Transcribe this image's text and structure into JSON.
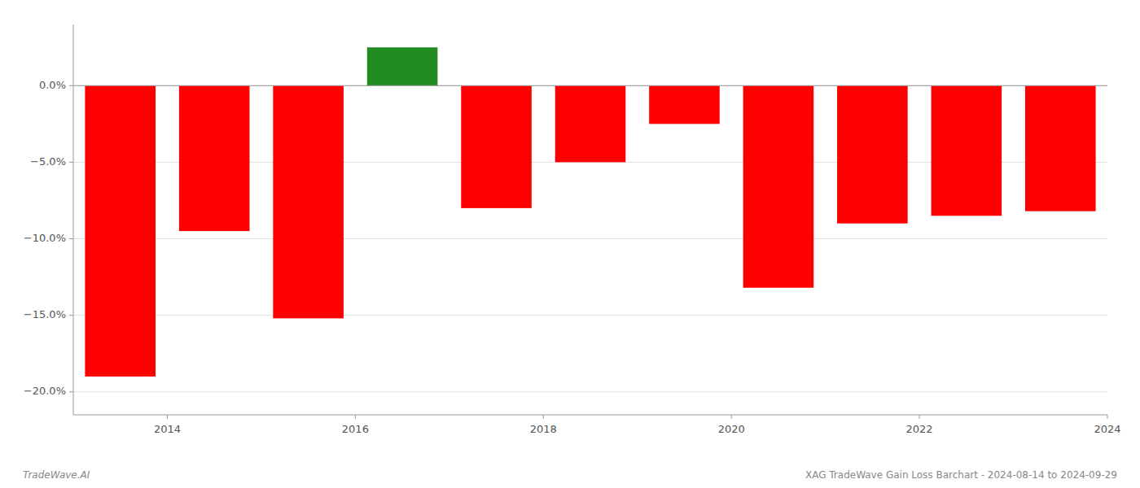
{
  "chart_data": {
    "type": "bar",
    "x": [
      2013.5,
      2014.5,
      2015.5,
      2016.5,
      2017.5,
      2018.5,
      2019.5,
      2020.5,
      2021.5,
      2022.5,
      2023.5
    ],
    "values": [
      -19.0,
      -9.5,
      -15.2,
      2.5,
      -8.0,
      -5.0,
      -2.5,
      -13.2,
      -9.0,
      -8.5,
      -8.2
    ],
    "colors": [
      "#ff0000",
      "#ff0000",
      "#ff0000",
      "#228b22",
      "#ff0000",
      "#ff0000",
      "#ff0000",
      "#ff0000",
      "#ff0000",
      "#ff0000",
      "#ff0000"
    ],
    "xlim": [
      2013,
      2024
    ],
    "xticks": [
      2014,
      2016,
      2018,
      2020,
      2022,
      2024
    ],
    "ylim": [
      -21.5,
      4.0
    ],
    "yticks": [
      {
        "value": 0.0,
        "label": "0.0%"
      },
      {
        "value": -5.0,
        "label": "−5.0%"
      },
      {
        "value": -10.0,
        "label": "−10.0%"
      },
      {
        "value": -15.0,
        "label": "−15.0%"
      },
      {
        "value": -20.0,
        "label": "−20.0%"
      }
    ],
    "grid": true,
    "annotations": [
      "TradeWave.AI",
      "XAG TradeWave Gain Loss Barchart - 2024-08-14 to 2024-09-29"
    ]
  }
}
